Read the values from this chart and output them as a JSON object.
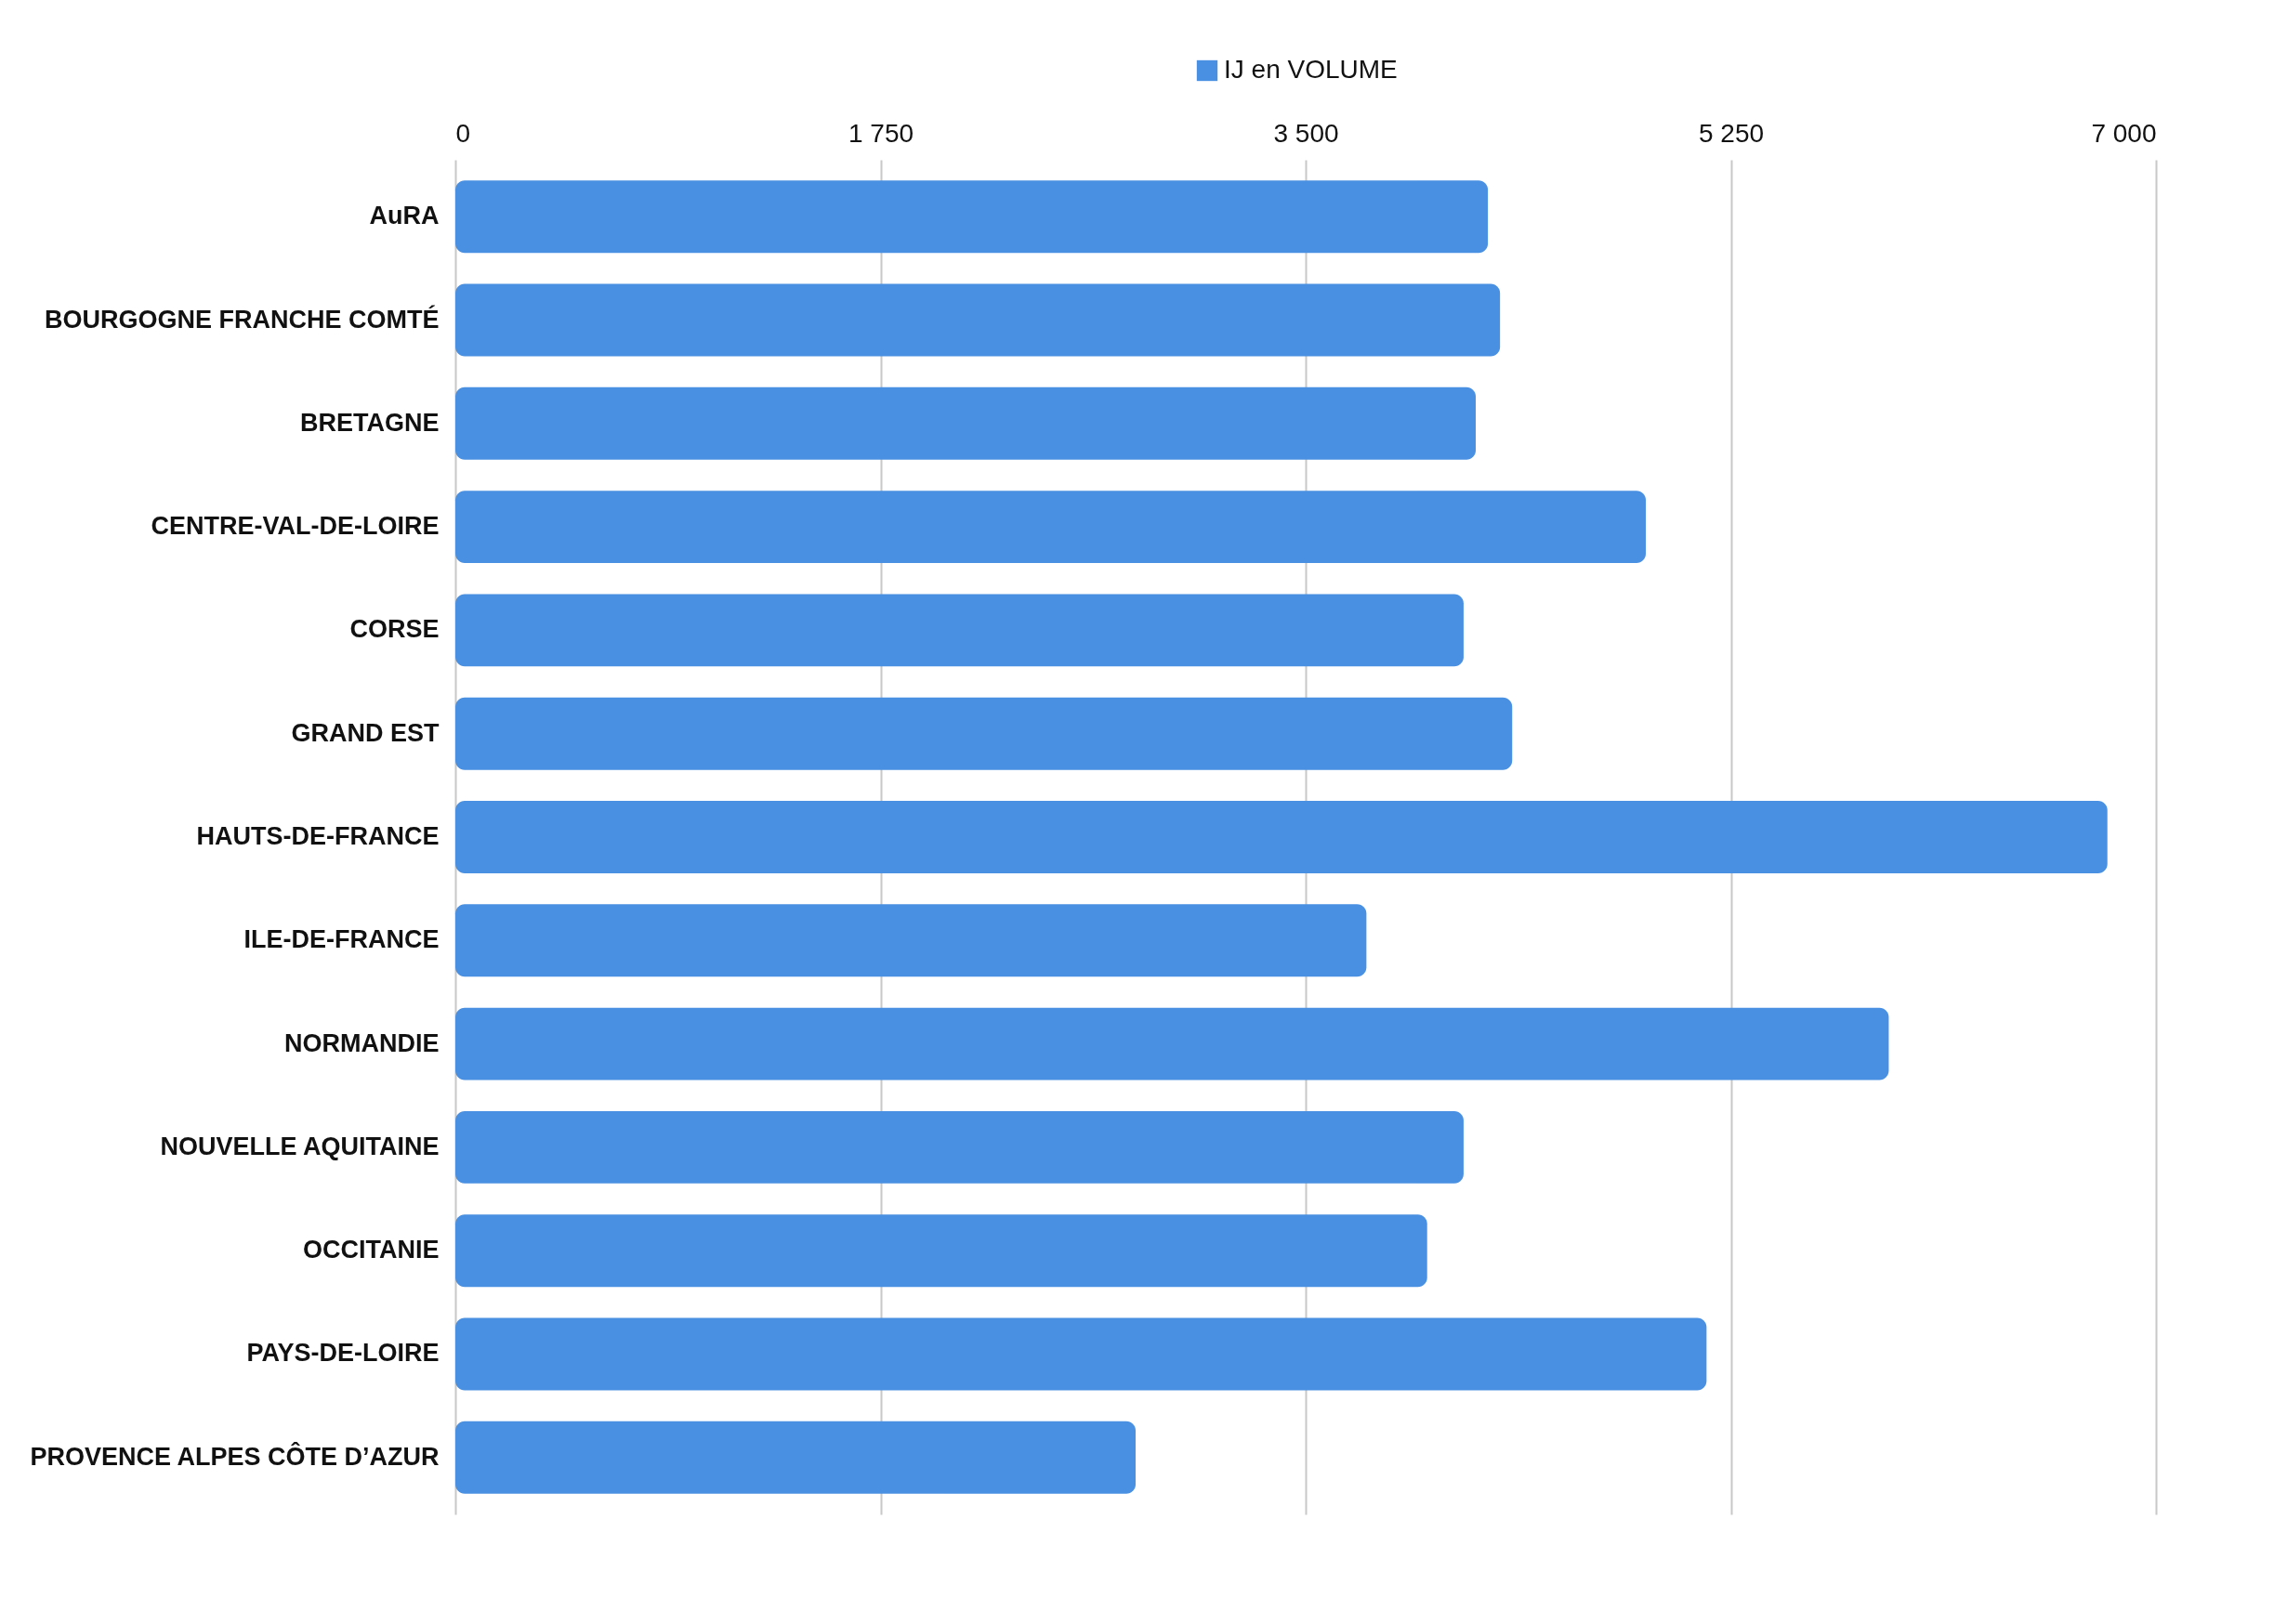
{
  "chart_data": {
    "type": "bar",
    "orientation": "horizontal",
    "categories": [
      "AuRA",
      "BOURGOGNE FRANCHE COMTÉ",
      "BRETAGNE",
      "CENTRE-VAL-DE-LOIRE",
      "CORSE",
      "GRAND EST",
      "HAUTS-DE-FRANCE",
      "ILE-DE-FRANCE",
      "NORMANDIE",
      "NOUVELLE AQUITAINE",
      "OCCITANIE",
      "PAYS-DE-LOIRE",
      "PROVENCE ALPES CÔTE D’AZUR"
    ],
    "series": [
      {
        "name": "IJ en VOLUME",
        "color": "#4a90e2",
        "values": [
          4250,
          4300,
          4200,
          4900,
          4150,
          4350,
          6800,
          3750,
          5900,
          4150,
          4000,
          5150,
          2800
        ]
      }
    ],
    "xlim": [
      0,
      7000
    ],
    "xticks": [
      0,
      {
        "value": 1750,
        "label": "1 750"
      },
      {
        "value": 3500,
        "label": "3 500"
      },
      {
        "value": 5250,
        "label": "5 250"
      },
      {
        "value": 7000,
        "label": "7 000"
      }
    ],
    "grid": "x",
    "legend": "top"
  }
}
